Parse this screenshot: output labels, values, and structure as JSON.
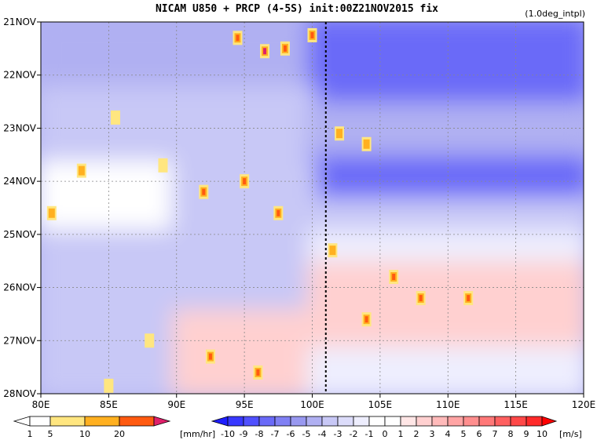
{
  "chart_data": {
    "type": "heatmap",
    "title": "NICAM   U850 + PRCP (4-5S) init:00Z21NOV2015 fix",
    "note": "(1.0deg_intpl)",
    "x_ticks": [
      "80E",
      "85E",
      "90E",
      "95E",
      "100E",
      "105E",
      "110E",
      "115E",
      "120E"
    ],
    "x_values": [
      80,
      85,
      90,
      95,
      100,
      105,
      110,
      115,
      120
    ],
    "y_ticks": [
      "21NOV",
      "22NOV",
      "23NOV",
      "24NOV",
      "25NOV",
      "26NOV",
      "27NOV",
      "28NOV"
    ],
    "xlim": [
      80,
      120
    ],
    "ylim_days": [
      21,
      28
    ],
    "grid": true,
    "marker_line_lon": 101,
    "u850_regions": [
      {
        "lon": [
          80,
          100
        ],
        "day": [
          21.0,
          22.3
        ],
        "u": -5
      },
      {
        "lon": [
          100,
          120
        ],
        "day": [
          21.0,
          22.6
        ],
        "u": -8
      },
      {
        "lon": [
          80,
          100
        ],
        "day": [
          22.3,
          23.7
        ],
        "u": -4
      },
      {
        "lon": [
          100,
          120
        ],
        "day": [
          22.6,
          23.6
        ],
        "u": -5
      },
      {
        "lon": [
          100,
          120
        ],
        "day": [
          23.6,
          24.4
        ],
        "u": -8
      },
      {
        "lon": [
          80,
          90
        ],
        "day": [
          23.7,
          25.0
        ],
        "u": -1
      },
      {
        "lon": [
          90,
          100
        ],
        "day": [
          23.7,
          25.0
        ],
        "u": -4
      },
      {
        "lon": [
          100,
          120
        ],
        "day": [
          24.4,
          25.0
        ],
        "u": -4
      },
      {
        "lon": [
          80,
          100
        ],
        "day": [
          25.0,
          26.5
        ],
        "u": -4
      },
      {
        "lon": [
          100,
          120
        ],
        "day": [
          25.0,
          25.6
        ],
        "u": -2
      },
      {
        "lon": [
          100,
          120
        ],
        "day": [
          25.6,
          27.2
        ],
        "u": 2
      },
      {
        "lon": [
          80,
          90
        ],
        "day": [
          26.5,
          28.0
        ],
        "u": -4
      },
      {
        "lon": [
          90,
          100
        ],
        "day": [
          26.5,
          28.0
        ],
        "u": 2
      },
      {
        "lon": [
          100,
          120
        ],
        "day": [
          27.2,
          28.0
        ],
        "u": -2
      }
    ],
    "precip_cells": [
      {
        "lon": 94.5,
        "day": 21.3,
        "mm": 10
      },
      {
        "lon": 96.5,
        "day": 21.55,
        "mm": 20
      },
      {
        "lon": 98.0,
        "day": 21.5,
        "mm": 10
      },
      {
        "lon": 100.0,
        "day": 21.25,
        "mm": 10
      },
      {
        "lon": 85.5,
        "day": 22.8,
        "mm": 1
      },
      {
        "lon": 83.0,
        "day": 23.8,
        "mm": 5
      },
      {
        "lon": 89.0,
        "day": 23.7,
        "mm": 1
      },
      {
        "lon": 95.0,
        "day": 24.0,
        "mm": 10
      },
      {
        "lon": 92.0,
        "day": 24.2,
        "mm": 10
      },
      {
        "lon": 80.8,
        "day": 24.6,
        "mm": 5
      },
      {
        "lon": 97.5,
        "day": 24.6,
        "mm": 10
      },
      {
        "lon": 102.0,
        "day": 23.1,
        "mm": 5
      },
      {
        "lon": 104.0,
        "day": 23.3,
        "mm": 5
      },
      {
        "lon": 101.5,
        "day": 25.3,
        "mm": 5
      },
      {
        "lon": 106.0,
        "day": 25.8,
        "mm": 10
      },
      {
        "lon": 104.0,
        "day": 26.6,
        "mm": 10
      },
      {
        "lon": 108.0,
        "day": 26.2,
        "mm": 10
      },
      {
        "lon": 111.5,
        "day": 26.2,
        "mm": 10
      },
      {
        "lon": 92.5,
        "day": 27.3,
        "mm": 10
      },
      {
        "lon": 96.0,
        "day": 27.6,
        "mm": 10
      },
      {
        "lon": 88.0,
        "day": 27.0,
        "mm": 1
      },
      {
        "lon": 85.0,
        "day": 27.85,
        "mm": 1
      }
    ]
  },
  "colorbars": {
    "precip": {
      "labels": [
        "1",
        "5",
        "10",
        "20"
      ],
      "unit": "[mm/hr]",
      "colors": [
        "#ffffff",
        "#ffe680",
        "#ffb020",
        "#ff5a10",
        "#e0206a"
      ]
    },
    "u850": {
      "labels": [
        "-10",
        "-9",
        "-8",
        "-7",
        "-6",
        "-5",
        "-4",
        "-3",
        "-2",
        "-1",
        "0",
        "1",
        "2",
        "3",
        "4",
        "5",
        "6",
        "7",
        "8",
        "9",
        "10"
      ],
      "unit": "[m/s]",
      "colors": [
        "#1e1eff",
        "#3838ff",
        "#5050ff",
        "#6a6af8",
        "#8080f4",
        "#9898f0",
        "#b0b0f2",
        "#c8c8f6",
        "#dcdcfa",
        "#eeeefe",
        "#ffffff",
        "#ffffff",
        "#ffe6e6",
        "#ffd0d0",
        "#ffbaba",
        "#ffa4a4",
        "#ff8e8e",
        "#ff7878",
        "#ff6060",
        "#ff4848",
        "#ff2a2a",
        "#ff0000"
      ]
    }
  }
}
